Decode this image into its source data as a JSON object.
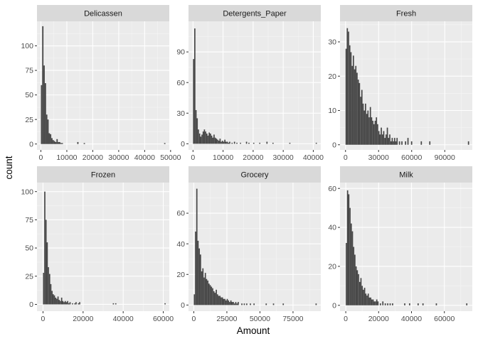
{
  "chart_data": [
    {
      "type": "bar",
      "facet": "Delicassen",
      "xlabel": "Amount",
      "ylabel": "count",
      "xlim": [
        -1500,
        49500
      ],
      "ylim": [
        -6,
        125
      ],
      "x_ticks": [
        0,
        10000,
        20000,
        30000,
        40000,
        50000
      ],
      "y_ticks": [
        0,
        25,
        50,
        75,
        100
      ],
      "binwidth": 500,
      "bins": [
        {
          "x": 0,
          "count": 60
        },
        {
          "x": 500,
          "count": 120
        },
        {
          "x": 1000,
          "count": 80
        },
        {
          "x": 1500,
          "count": 62
        },
        {
          "x": 2000,
          "count": 30
        },
        {
          "x": 2500,
          "count": 25
        },
        {
          "x": 3000,
          "count": 11
        },
        {
          "x": 3500,
          "count": 10
        },
        {
          "x": 4000,
          "count": 6
        },
        {
          "x": 4500,
          "count": 4
        },
        {
          "x": 5000,
          "count": 3
        },
        {
          "x": 5500,
          "count": 2
        },
        {
          "x": 6000,
          "count": 5
        },
        {
          "x": 6500,
          "count": 2
        },
        {
          "x": 7000,
          "count": 2
        },
        {
          "x": 7500,
          "count": 1
        },
        {
          "x": 8000,
          "count": 1
        },
        {
          "x": 14000,
          "count": 2
        },
        {
          "x": 16500,
          "count": 1
        },
        {
          "x": 47500,
          "count": 1
        }
      ]
    },
    {
      "type": "bar",
      "facet": "Detergents_Paper",
      "xlabel": "Amount",
      "ylabel": "count",
      "xlim": [
        -1500,
        42500
      ],
      "ylim": [
        -6,
        120
      ],
      "x_ticks": [
        0,
        10000,
        20000,
        30000,
        40000
      ],
      "y_ticks": [
        0,
        30,
        60,
        90
      ],
      "binwidth": 400,
      "bins": [
        {
          "x": 0,
          "count": 83
        },
        {
          "x": 400,
          "count": 113
        },
        {
          "x": 800,
          "count": 33
        },
        {
          "x": 1200,
          "count": 25
        },
        {
          "x": 1600,
          "count": 14
        },
        {
          "x": 2000,
          "count": 10
        },
        {
          "x": 2400,
          "count": 7
        },
        {
          "x": 2800,
          "count": 9
        },
        {
          "x": 3200,
          "count": 12
        },
        {
          "x": 3600,
          "count": 14
        },
        {
          "x": 4000,
          "count": 12
        },
        {
          "x": 4400,
          "count": 10
        },
        {
          "x": 4800,
          "count": 8
        },
        {
          "x": 5200,
          "count": 11
        },
        {
          "x": 5600,
          "count": 10
        },
        {
          "x": 6000,
          "count": 8
        },
        {
          "x": 6400,
          "count": 6
        },
        {
          "x": 6800,
          "count": 9
        },
        {
          "x": 7200,
          "count": 6
        },
        {
          "x": 7600,
          "count": 5
        },
        {
          "x": 8000,
          "count": 4
        },
        {
          "x": 8400,
          "count": 3
        },
        {
          "x": 8800,
          "count": 5
        },
        {
          "x": 9200,
          "count": 2
        },
        {
          "x": 9600,
          "count": 3
        },
        {
          "x": 10000,
          "count": 2
        },
        {
          "x": 10400,
          "count": 4
        },
        {
          "x": 10800,
          "count": 2
        },
        {
          "x": 11200,
          "count": 2
        },
        {
          "x": 11600,
          "count": 1
        },
        {
          "x": 12000,
          "count": 2
        },
        {
          "x": 12800,
          "count": 1
        },
        {
          "x": 13600,
          "count": 2
        },
        {
          "x": 14400,
          "count": 1
        },
        {
          "x": 15600,
          "count": 1
        },
        {
          "x": 17600,
          "count": 2
        },
        {
          "x": 18400,
          "count": 1
        },
        {
          "x": 20000,
          "count": 1
        },
        {
          "x": 22000,
          "count": 1
        },
        {
          "x": 24400,
          "count": 2
        },
        {
          "x": 26400,
          "count": 1
        },
        {
          "x": 32000,
          "count": 1
        },
        {
          "x": 40800,
          "count": 1
        }
      ]
    },
    {
      "type": "bar",
      "facet": "Fresh",
      "xlabel": "Amount",
      "ylabel": "count",
      "xlim": [
        -5000,
        115000
      ],
      "ylim": [
        -1.5,
        36
      ],
      "x_ticks": [
        0,
        30000,
        60000,
        90000
      ],
      "y_ticks": [
        0,
        10,
        20,
        30
      ],
      "binwidth": 1100,
      "bins": [
        {
          "x": 0,
          "count": 28
        },
        {
          "x": 1100,
          "count": 34
        },
        {
          "x": 2200,
          "count": 33
        },
        {
          "x": 3300,
          "count": 29
        },
        {
          "x": 4400,
          "count": 27
        },
        {
          "x": 5500,
          "count": 23
        },
        {
          "x": 6600,
          "count": 26
        },
        {
          "x": 7700,
          "count": 22
        },
        {
          "x": 8800,
          "count": 23
        },
        {
          "x": 9900,
          "count": 21
        },
        {
          "x": 11000,
          "count": 19
        },
        {
          "x": 12100,
          "count": 18
        },
        {
          "x": 13200,
          "count": 14
        },
        {
          "x": 14300,
          "count": 16
        },
        {
          "x": 15400,
          "count": 12
        },
        {
          "x": 16500,
          "count": 10
        },
        {
          "x": 17600,
          "count": 12
        },
        {
          "x": 18700,
          "count": 9
        },
        {
          "x": 19800,
          "count": 10
        },
        {
          "x": 20900,
          "count": 8
        },
        {
          "x": 22000,
          "count": 11
        },
        {
          "x": 23100,
          "count": 8
        },
        {
          "x": 24200,
          "count": 7
        },
        {
          "x": 25300,
          "count": 6
        },
        {
          "x": 26400,
          "count": 7
        },
        {
          "x": 27500,
          "count": 8
        },
        {
          "x": 28600,
          "count": 6
        },
        {
          "x": 29700,
          "count": 4
        },
        {
          "x": 30800,
          "count": 3
        },
        {
          "x": 31900,
          "count": 5
        },
        {
          "x": 33000,
          "count": 3
        },
        {
          "x": 34100,
          "count": 4
        },
        {
          "x": 35200,
          "count": 2
        },
        {
          "x": 36300,
          "count": 3
        },
        {
          "x": 37400,
          "count": 5
        },
        {
          "x": 38500,
          "count": 2
        },
        {
          "x": 39600,
          "count": 3
        },
        {
          "x": 40700,
          "count": 1
        },
        {
          "x": 41800,
          "count": 2
        },
        {
          "x": 42900,
          "count": 1
        },
        {
          "x": 44000,
          "count": 2
        },
        {
          "x": 45100,
          "count": 1
        },
        {
          "x": 46200,
          "count": 2
        },
        {
          "x": 48400,
          "count": 1
        },
        {
          "x": 50600,
          "count": 1
        },
        {
          "x": 53900,
          "count": 1
        },
        {
          "x": 56100,
          "count": 2
        },
        {
          "x": 59400,
          "count": 1
        },
        {
          "x": 68200,
          "count": 1
        },
        {
          "x": 75900,
          "count": 1
        },
        {
          "x": 111000,
          "count": 1
        }
      ]
    },
    {
      "type": "bar",
      "facet": "Frozen",
      "xlabel": "Amount",
      "ylabel": "count",
      "xlim": [
        -3000,
        63000
      ],
      "ylim": [
        -6,
        108
      ],
      "x_ticks": [
        0,
        20000,
        40000,
        60000
      ],
      "y_ticks": [
        0,
        25,
        50,
        75,
        100
      ],
      "binwidth": 600,
      "bins": [
        {
          "x": 0,
          "count": 28
        },
        {
          "x": 600,
          "count": 100
        },
        {
          "x": 1200,
          "count": 75
        },
        {
          "x": 1800,
          "count": 55
        },
        {
          "x": 2400,
          "count": 33
        },
        {
          "x": 3000,
          "count": 27
        },
        {
          "x": 3600,
          "count": 18
        },
        {
          "x": 4200,
          "count": 12
        },
        {
          "x": 4800,
          "count": 9
        },
        {
          "x": 5400,
          "count": 8
        },
        {
          "x": 6000,
          "count": 6
        },
        {
          "x": 6600,
          "count": 5
        },
        {
          "x": 7200,
          "count": 7
        },
        {
          "x": 7800,
          "count": 4
        },
        {
          "x": 8400,
          "count": 3
        },
        {
          "x": 9000,
          "count": 6
        },
        {
          "x": 9600,
          "count": 3
        },
        {
          "x": 10200,
          "count": 2
        },
        {
          "x": 10800,
          "count": 3
        },
        {
          "x": 11400,
          "count": 2
        },
        {
          "x": 12000,
          "count": 3
        },
        {
          "x": 12600,
          "count": 1
        },
        {
          "x": 13200,
          "count": 2
        },
        {
          "x": 14400,
          "count": 1
        },
        {
          "x": 15600,
          "count": 1
        },
        {
          "x": 16200,
          "count": 2
        },
        {
          "x": 17400,
          "count": 1
        },
        {
          "x": 18000,
          "count": 2
        },
        {
          "x": 34800,
          "count": 1
        },
        {
          "x": 36000,
          "count": 1
        },
        {
          "x": 60600,
          "count": 1
        }
      ]
    },
    {
      "type": "bar",
      "facet": "Grocery",
      "xlabel": "Amount",
      "ylabel": "count",
      "xlim": [
        -4000,
        96000
      ],
      "ylim": [
        -4,
        80
      ],
      "x_ticks": [
        0,
        25000,
        50000,
        75000
      ],
      "y_ticks": [
        0,
        20,
        40,
        60
      ],
      "binwidth": 920,
      "bins": [
        {
          "x": 0,
          "count": 7
        },
        {
          "x": 920,
          "count": 48
        },
        {
          "x": 1840,
          "count": 76
        },
        {
          "x": 2760,
          "count": 42
        },
        {
          "x": 3680,
          "count": 37
        },
        {
          "x": 4600,
          "count": 33
        },
        {
          "x": 5520,
          "count": 22
        },
        {
          "x": 6440,
          "count": 24
        },
        {
          "x": 7360,
          "count": 18
        },
        {
          "x": 8280,
          "count": 21
        },
        {
          "x": 9200,
          "count": 17
        },
        {
          "x": 10120,
          "count": 16
        },
        {
          "x": 11040,
          "count": 14
        },
        {
          "x": 11960,
          "count": 13
        },
        {
          "x": 12880,
          "count": 12
        },
        {
          "x": 13800,
          "count": 11
        },
        {
          "x": 14720,
          "count": 9
        },
        {
          "x": 15640,
          "count": 8
        },
        {
          "x": 16560,
          "count": 10
        },
        {
          "x": 17480,
          "count": 7
        },
        {
          "x": 18400,
          "count": 6
        },
        {
          "x": 19320,
          "count": 6
        },
        {
          "x": 20240,
          "count": 5
        },
        {
          "x": 21160,
          "count": 5
        },
        {
          "x": 22080,
          "count": 4
        },
        {
          "x": 23000,
          "count": 4
        },
        {
          "x": 23920,
          "count": 3
        },
        {
          "x": 24840,
          "count": 4
        },
        {
          "x": 25760,
          "count": 3
        },
        {
          "x": 26680,
          "count": 2
        },
        {
          "x": 27600,
          "count": 3
        },
        {
          "x": 28520,
          "count": 2
        },
        {
          "x": 29440,
          "count": 2
        },
        {
          "x": 30360,
          "count": 1
        },
        {
          "x": 31280,
          "count": 2
        },
        {
          "x": 32200,
          "count": 1
        },
        {
          "x": 33120,
          "count": 2
        },
        {
          "x": 35880,
          "count": 1
        },
        {
          "x": 37720,
          "count": 1
        },
        {
          "x": 39560,
          "count": 1
        },
        {
          "x": 42320,
          "count": 1
        },
        {
          "x": 45080,
          "count": 1
        },
        {
          "x": 54280,
          "count": 1
        },
        {
          "x": 59800,
          "count": 1
        },
        {
          "x": 67160,
          "count": 1
        },
        {
          "x": 92000,
          "count": 1
        }
      ]
    },
    {
      "type": "bar",
      "facet": "Milk",
      "xlabel": "Amount",
      "ylabel": "count",
      "xlim": [
        -3500,
        77000
      ],
      "ylim": [
        -3,
        63
      ],
      "x_ticks": [
        0,
        20000,
        40000,
        60000
      ],
      "y_ticks": [
        0,
        20,
        40,
        60
      ],
      "binwidth": 740,
      "bins": [
        {
          "x": 0,
          "count": 32
        },
        {
          "x": 740,
          "count": 59
        },
        {
          "x": 1480,
          "count": 57
        },
        {
          "x": 2220,
          "count": 50
        },
        {
          "x": 2960,
          "count": 42
        },
        {
          "x": 3700,
          "count": 38
        },
        {
          "x": 4440,
          "count": 30
        },
        {
          "x": 5180,
          "count": 26
        },
        {
          "x": 5920,
          "count": 20
        },
        {
          "x": 6660,
          "count": 18
        },
        {
          "x": 7400,
          "count": 16
        },
        {
          "x": 8140,
          "count": 12
        },
        {
          "x": 8880,
          "count": 14
        },
        {
          "x": 9620,
          "count": 10
        },
        {
          "x": 10360,
          "count": 8
        },
        {
          "x": 11100,
          "count": 9
        },
        {
          "x": 11840,
          "count": 6
        },
        {
          "x": 12580,
          "count": 5
        },
        {
          "x": 13320,
          "count": 6
        },
        {
          "x": 14060,
          "count": 4
        },
        {
          "x": 14800,
          "count": 4
        },
        {
          "x": 15540,
          "count": 3
        },
        {
          "x": 16280,
          "count": 3
        },
        {
          "x": 17020,
          "count": 2
        },
        {
          "x": 17760,
          "count": 2
        },
        {
          "x": 18500,
          "count": 3
        },
        {
          "x": 19240,
          "count": 2
        },
        {
          "x": 20720,
          "count": 1
        },
        {
          "x": 22200,
          "count": 2
        },
        {
          "x": 23680,
          "count": 1
        },
        {
          "x": 25160,
          "count": 1
        },
        {
          "x": 26640,
          "count": 1
        },
        {
          "x": 28120,
          "count": 1
        },
        {
          "x": 35520,
          "count": 1
        },
        {
          "x": 38480,
          "count": 1
        },
        {
          "x": 43660,
          "count": 1
        },
        {
          "x": 46620,
          "count": 1
        },
        {
          "x": 54760,
          "count": 1
        },
        {
          "x": 73260,
          "count": 1
        }
      ]
    }
  ]
}
